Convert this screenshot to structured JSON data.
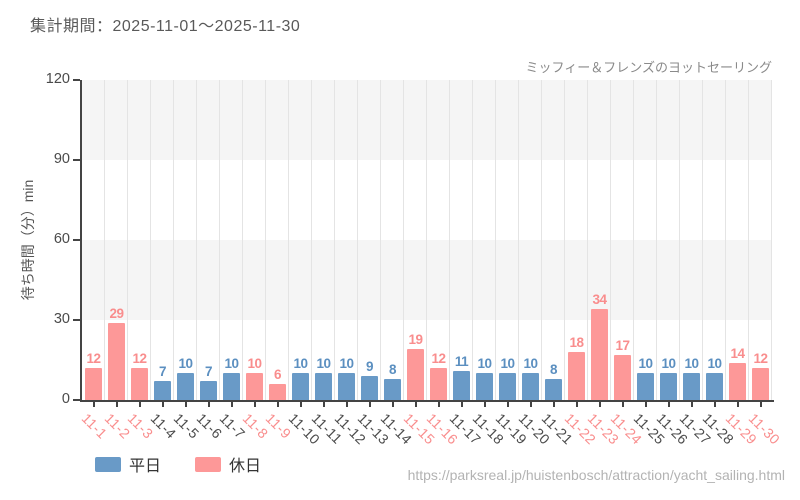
{
  "header": {
    "period_label": "集計期間：2025-11-01～2025-11-30"
  },
  "chart_data": {
    "type": "bar",
    "title": "ミッフィー＆フレンズのヨットセーリング",
    "xlabel": "",
    "ylabel": "待ち時間（分）min",
    "ylim": [
      0,
      120
    ],
    "yticks": [
      0,
      30,
      60,
      90,
      120
    ],
    "grid": true,
    "legend_position": "bottom-left",
    "categories": [
      "11-1",
      "11-2",
      "11-3",
      "11-4",
      "11-5",
      "11-6",
      "11-7",
      "11-8",
      "11-9",
      "11-10",
      "11-11",
      "11-12",
      "11-13",
      "11-14",
      "11-15",
      "11-16",
      "11-17",
      "11-18",
      "11-19",
      "11-20",
      "11-21",
      "11-22",
      "11-23",
      "11-24",
      "11-25",
      "11-26",
      "11-27",
      "11-28",
      "11-29",
      "11-30"
    ],
    "values": [
      12,
      29,
      12,
      7,
      10,
      7,
      10,
      10,
      6,
      10,
      10,
      10,
      9,
      8,
      19,
      12,
      11,
      10,
      10,
      10,
      8,
      18,
      34,
      17,
      10,
      10,
      10,
      10,
      14,
      12
    ],
    "day_types": [
      "holiday",
      "holiday",
      "holiday",
      "weekday",
      "weekday",
      "weekday",
      "weekday",
      "holiday",
      "holiday",
      "weekday",
      "weekday",
      "weekday",
      "weekday",
      "weekday",
      "holiday",
      "holiday",
      "weekday",
      "weekday",
      "weekday",
      "weekday",
      "weekday",
      "holiday",
      "holiday",
      "holiday",
      "weekday",
      "weekday",
      "weekday",
      "weekday",
      "holiday",
      "holiday"
    ]
  },
  "legend": {
    "weekday_label": "平日",
    "holiday_label": "休日"
  },
  "colors": {
    "weekday_bar": "#699ac7",
    "holiday_bar": "#fd9898",
    "weekday_value_text": "#5b8fc0",
    "holiday_value_text": "#f98d8d",
    "weekday_axis_text": "#4a4a4a",
    "holiday_axis_text": "#f98d8d",
    "axis": "#444444",
    "grid_line": "#e4e4e4",
    "band": "#f5f5f5"
  },
  "footer": {
    "source_url": "https://parksreal.jp/huistenbosch/attraction/yacht_sailing.html"
  }
}
